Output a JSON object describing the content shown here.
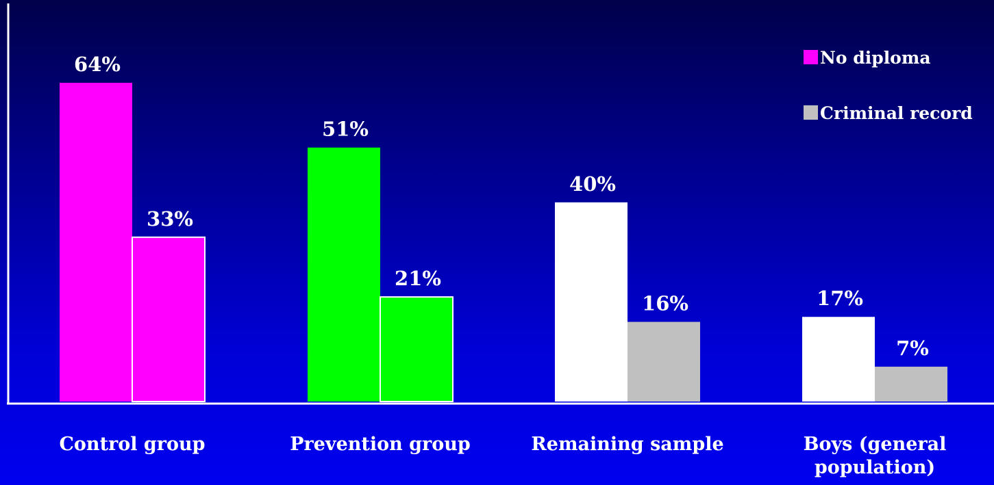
{
  "chart_data": {
    "type": "bar",
    "title": "",
    "xlabel": "",
    "ylabel": "",
    "ylim": [
      0,
      70
    ],
    "grid": false,
    "legend_position": "top-right",
    "categories": [
      [
        "Control group"
      ],
      [
        "Prevention group"
      ],
      [
        "Remaining sample"
      ],
      [
        "Boys (general",
        "population)"
      ]
    ],
    "series": [
      {
        "name": "No diploma",
        "color": "#ff00ff",
        "values": [
          64,
          51,
          40,
          17
        ],
        "labels": [
          "64%",
          "51%",
          "40%",
          "17%"
        ],
        "bar_colors": [
          "#ff00ff",
          "#00ff00",
          "#ffffff",
          "#ffffff"
        ]
      },
      {
        "name": "Criminal record",
        "color": "#c0c0c0",
        "values": [
          33,
          21,
          16,
          7
        ],
        "labels": [
          "33%",
          "21%",
          "16%",
          "7%"
        ],
        "bar_colors": [
          "#ff00ff",
          "#00ff00",
          "#c0c0c0",
          "#c0c0c0"
        ]
      }
    ],
    "colors": {
      "axis": "#ffffff",
      "bar_outline": "#ffffff"
    }
  }
}
